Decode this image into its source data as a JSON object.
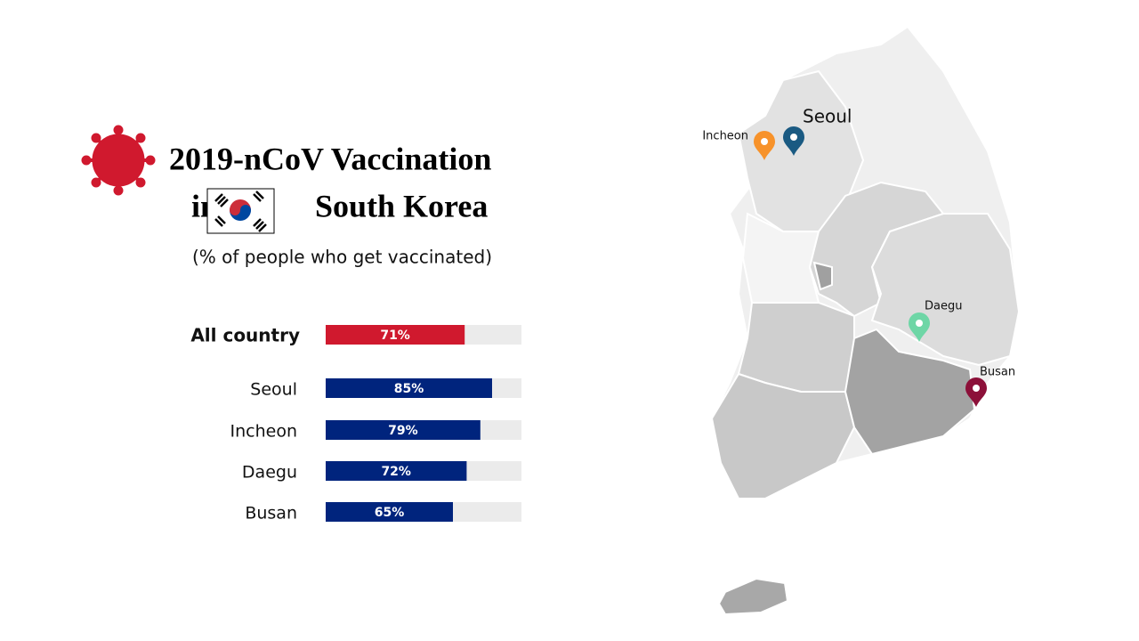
{
  "title_line1": "2019-nCoV Vaccination",
  "title_in": "in",
  "title_line2": "South Korea",
  "subtitle": "(% of people who get vaccinated)",
  "chart_data": {
    "type": "bar",
    "orientation": "horizontal",
    "categories": [
      "All country",
      "Seoul",
      "Incheon",
      "Daegu",
      "Busan"
    ],
    "values": [
      71,
      85,
      79,
      72,
      65
    ],
    "value_labels": [
      "71%",
      "85%",
      "79%",
      "72%",
      "65%"
    ],
    "colors": [
      "#d0192e",
      "#00247d",
      "#00247d",
      "#00247d",
      "#00247d"
    ],
    "track_color": "#ebebeb",
    "xlim": [
      0,
      100
    ]
  },
  "map": {
    "markers": [
      {
        "label": "Seoul",
        "color": "#1a5a82"
      },
      {
        "label": "Incheon",
        "color": "#f7922a"
      },
      {
        "label": "Daegu",
        "color": "#6ed6a6"
      },
      {
        "label": "Busan",
        "color": "#8c1039"
      }
    ]
  }
}
